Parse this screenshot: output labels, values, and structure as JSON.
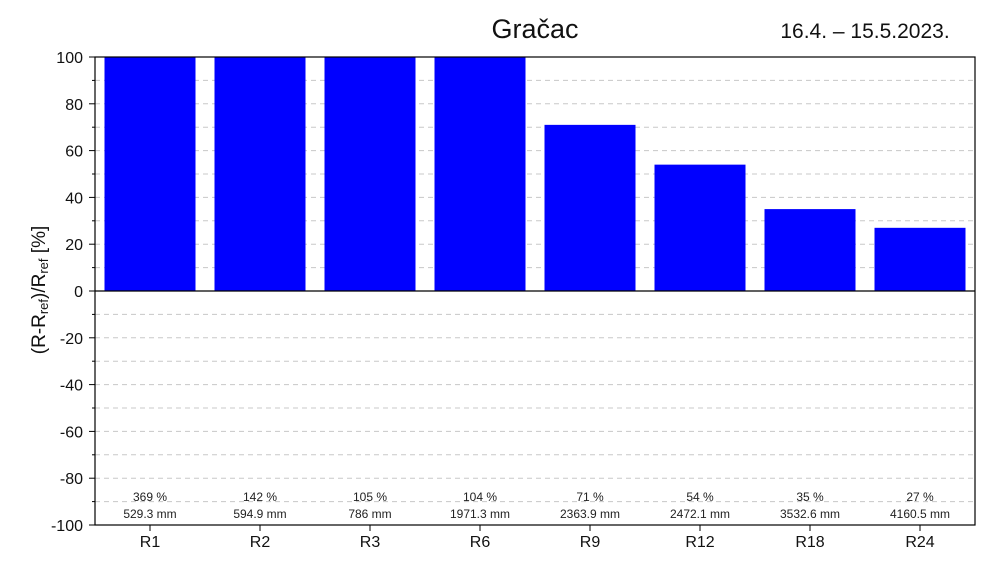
{
  "chart_data": {
    "type": "bar",
    "title": "Gračac",
    "date_range": "16.4. – 15.5.2023.",
    "ylabel": {
      "prefix": "(R-R",
      "sub1": "ref",
      "mid": ")/R",
      "sub2": "ref",
      "suffix": " [%]"
    },
    "xlabel": "",
    "categories": [
      "R1",
      "R2",
      "R3",
      "R6",
      "R9",
      "R12",
      "R18",
      "R24"
    ],
    "values": [
      369,
      142,
      105,
      104,
      71,
      54,
      35,
      27
    ],
    "value_labels": [
      "369 %",
      "142 %",
      "105 %",
      "104 %",
      "71 %",
      "54 %",
      "35 %",
      "27 %"
    ],
    "amount_labels": [
      "529.3 mm",
      "594.9 mm",
      "786 mm",
      "1971.3 mm",
      "2363.9 mm",
      "2472.1 mm",
      "3532.6 mm",
      "4160.5 mm"
    ],
    "ylim": [
      -100,
      100
    ],
    "yticks": [
      100,
      80,
      60,
      40,
      20,
      0,
      -20,
      -40,
      -60,
      -80,
      -100
    ],
    "grid": true,
    "bar_color": "#0000FF"
  }
}
